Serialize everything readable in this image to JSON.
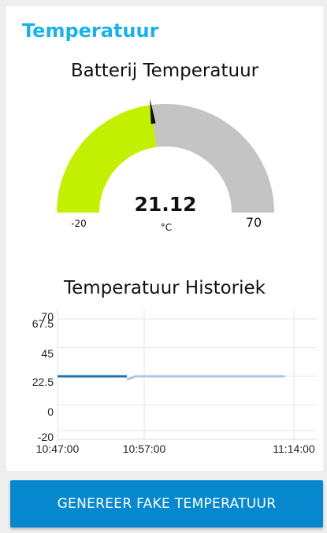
{
  "section": {
    "title": "Temperatuur"
  },
  "gauge": {
    "title": "Batterij Temperatuur",
    "value": 21.12,
    "value_label": "21.12",
    "unit": "°C",
    "min": -20,
    "max": 70,
    "min_label": "-20",
    "max_label": "70",
    "fill_color": "#c3f000",
    "track_color": "#c4c4c4",
    "needle_color": "#111111"
  },
  "chart_data": {
    "type": "line",
    "title": "Temperatuur Historiek",
    "xlabel": "",
    "ylabel": "",
    "x_tick_labels": [
      "10:47:00",
      "10:57:00",
      "11:14:00"
    ],
    "y_tick_labels": [
      "70",
      "67.5",
      "45",
      "22.5",
      "0",
      "-20"
    ],
    "ylim": [
      -20,
      70
    ],
    "grid": true,
    "series": [
      {
        "color": "#1f6fb5",
        "x": [
          "10:47:00",
          "10:48:00",
          "10:54:00",
          "10:55:00"
        ],
        "y": [
          22.5,
          22.5,
          22.5,
          22.5
        ]
      },
      {
        "color": "#aec7e8",
        "x": [
          "10:55:00",
          "10:56:00",
          "11:13:00"
        ],
        "y": [
          20,
          22.5,
          22.5
        ]
      }
    ]
  },
  "actions": {
    "generate_label": "GENEREER FAKE TEMPERATUUR"
  }
}
